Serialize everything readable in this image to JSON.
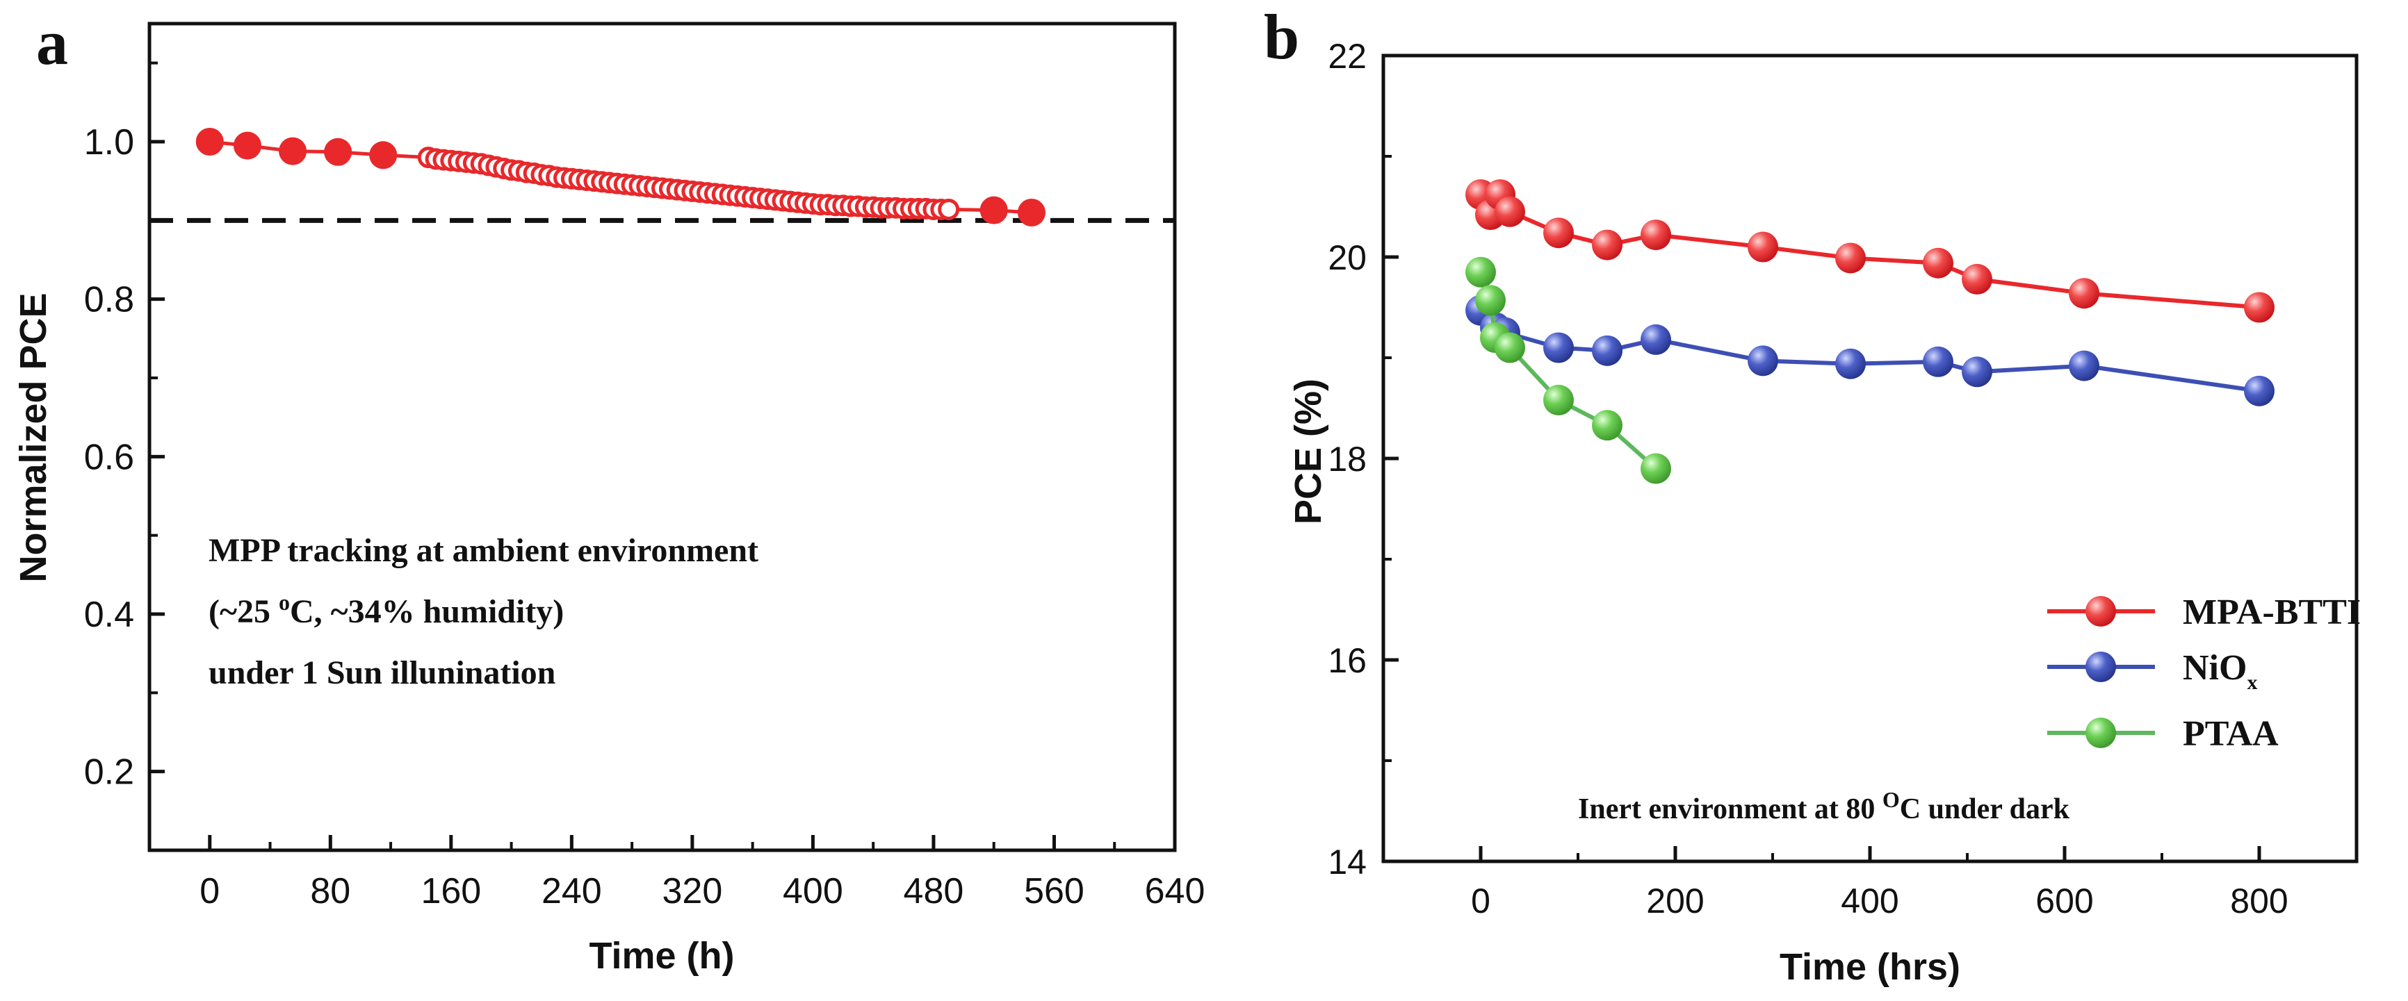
{
  "panel_a": {
    "label": "a",
    "annotation_lines": [
      "MPP tracking at ambient environment",
      "humidity)",
      "under 1 Sun illunination"
    ],
    "annotation_temp": {
      "prefix": "(~25 ",
      "superscript": "o",
      "suffix": "C, ~34%"
    }
  },
  "panel_b": {
    "label": "b",
    "annotation": {
      "prefix": "Inert environment at 80 ",
      "superscript": "O",
      "suffix": "C under dark"
    },
    "nio_label": {
      "main": "NiO",
      "subscript": "x"
    }
  },
  "chart_data": [
    {
      "type": "line",
      "title": "",
      "xlabel": "Time (h)",
      "ylabel": "Normalized PCE",
      "xlim": [
        -40,
        640
      ],
      "ylim": [
        0.1,
        1.15
      ],
      "xticks": [
        0,
        80,
        160,
        240,
        320,
        400,
        480,
        560,
        640
      ],
      "yticks": [
        0.2,
        0.4,
        0.6,
        0.8,
        1.0
      ],
      "ytick_labels": [
        "0.2",
        "0.4",
        "0.6",
        "0.8",
        "1.0"
      ],
      "reference_line": {
        "y": 0.9,
        "style": "dashed"
      },
      "series": [
        {
          "name": "MPP tracking",
          "color": "#e8282b",
          "x": [
            0,
            25,
            55,
            85,
            115,
            145,
            150,
            155,
            160,
            165,
            170,
            175,
            180,
            185,
            190,
            195,
            200,
            205,
            210,
            215,
            220,
            225,
            230,
            235,
            240,
            245,
            250,
            255,
            260,
            265,
            270,
            275,
            280,
            285,
            290,
            295,
            300,
            305,
            310,
            315,
            320,
            325,
            330,
            335,
            340,
            345,
            350,
            355,
            360,
            365,
            370,
            375,
            380,
            385,
            390,
            395,
            400,
            405,
            410,
            415,
            420,
            425,
            430,
            435,
            440,
            445,
            450,
            455,
            460,
            465,
            470,
            475,
            480,
            485,
            490,
            520,
            545
          ],
          "y": [
            1.0,
            0.995,
            0.988,
            0.987,
            0.983,
            0.98,
            0.978,
            0.977,
            0.976,
            0.975,
            0.974,
            0.973,
            0.972,
            0.97,
            0.968,
            0.966,
            0.964,
            0.963,
            0.961,
            0.96,
            0.958,
            0.957,
            0.955,
            0.954,
            0.953,
            0.952,
            0.951,
            0.95,
            0.949,
            0.948,
            0.947,
            0.946,
            0.945,
            0.944,
            0.943,
            0.942,
            0.941,
            0.94,
            0.939,
            0.938,
            0.937,
            0.936,
            0.935,
            0.934,
            0.933,
            0.932,
            0.931,
            0.93,
            0.929,
            0.928,
            0.927,
            0.926,
            0.925,
            0.924,
            0.923,
            0.922,
            0.921,
            0.92,
            0.92,
            0.919,
            0.919,
            0.918,
            0.918,
            0.917,
            0.917,
            0.916,
            0.916,
            0.916,
            0.915,
            0.915,
            0.915,
            0.915,
            0.914,
            0.914,
            0.914,
            0.913,
            0.91
          ]
        }
      ]
    },
    {
      "type": "line",
      "title": "",
      "xlabel": "Time (hrs)",
      "ylabel": "PCE (%)",
      "xlim": [
        -100,
        900
      ],
      "ylim": [
        14,
        22
      ],
      "xticks": [
        0,
        200,
        400,
        600,
        800
      ],
      "yticks": [
        14,
        16,
        18,
        20,
        22
      ],
      "ytick_labels": [
        "14",
        "16",
        "18",
        "20",
        "22"
      ],
      "legend_position": "bottom-right",
      "series": [
        {
          "name": "MPA-BTTI",
          "color": "#e8282b",
          "x": [
            0,
            10,
            20,
            30,
            80,
            130,
            180,
            290,
            380,
            470,
            510,
            620,
            800
          ],
          "y": [
            20.62,
            20.42,
            20.62,
            20.45,
            20.24,
            20.12,
            20.22,
            20.1,
            19.99,
            19.94,
            19.78,
            19.64,
            19.5
          ]
        },
        {
          "name": "NiO",
          "color": "#3d4fb5",
          "x": [
            0,
            15,
            25,
            80,
            130,
            180,
            290,
            380,
            470,
            510,
            620,
            800
          ],
          "y": [
            19.47,
            19.3,
            19.25,
            19.1,
            19.07,
            19.18,
            18.97,
            18.94,
            18.96,
            18.86,
            18.92,
            18.67
          ]
        },
        {
          "name": "PTAA",
          "color": "#5cb85c",
          "x": [
            0,
            10,
            15,
            30,
            80,
            130,
            180
          ],
          "y": [
            19.85,
            19.57,
            19.2,
            19.1,
            18.58,
            18.33,
            17.9
          ]
        }
      ]
    }
  ]
}
